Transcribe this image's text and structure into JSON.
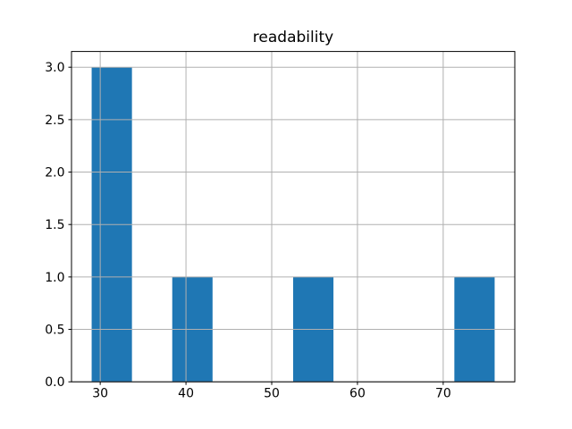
{
  "chart_data": {
    "type": "bar",
    "subtype": "histogram",
    "title": "readability",
    "bin_edges": [
      29.0,
      33.7,
      38.4,
      43.1,
      47.8,
      52.5,
      57.2,
      61.9,
      66.6,
      71.3,
      76.0
    ],
    "counts": [
      3,
      0,
      1,
      0,
      0,
      1,
      0,
      0,
      0,
      1
    ],
    "xticks": [
      30,
      40,
      50,
      60,
      70
    ],
    "xtick_labels": [
      "30",
      "40",
      "50",
      "60",
      "70"
    ],
    "yticks": [
      0.0,
      0.5,
      1.0,
      1.5,
      2.0,
      2.5,
      3.0
    ],
    "ytick_labels": [
      "0.0",
      "0.5",
      "1.0",
      "1.5",
      "2.0",
      "2.5",
      "3.0"
    ],
    "xlim": [
      26.65,
      78.35
    ],
    "ylim": [
      0,
      3.15
    ],
    "grid": true,
    "legend": false,
    "xlabel": "",
    "ylabel": "",
    "bar_color": "#1f77b4",
    "grid_color": "#b0b0b0",
    "axis_color": "#000000",
    "text_color": "#000000",
    "background_color": "#ffffff"
  }
}
